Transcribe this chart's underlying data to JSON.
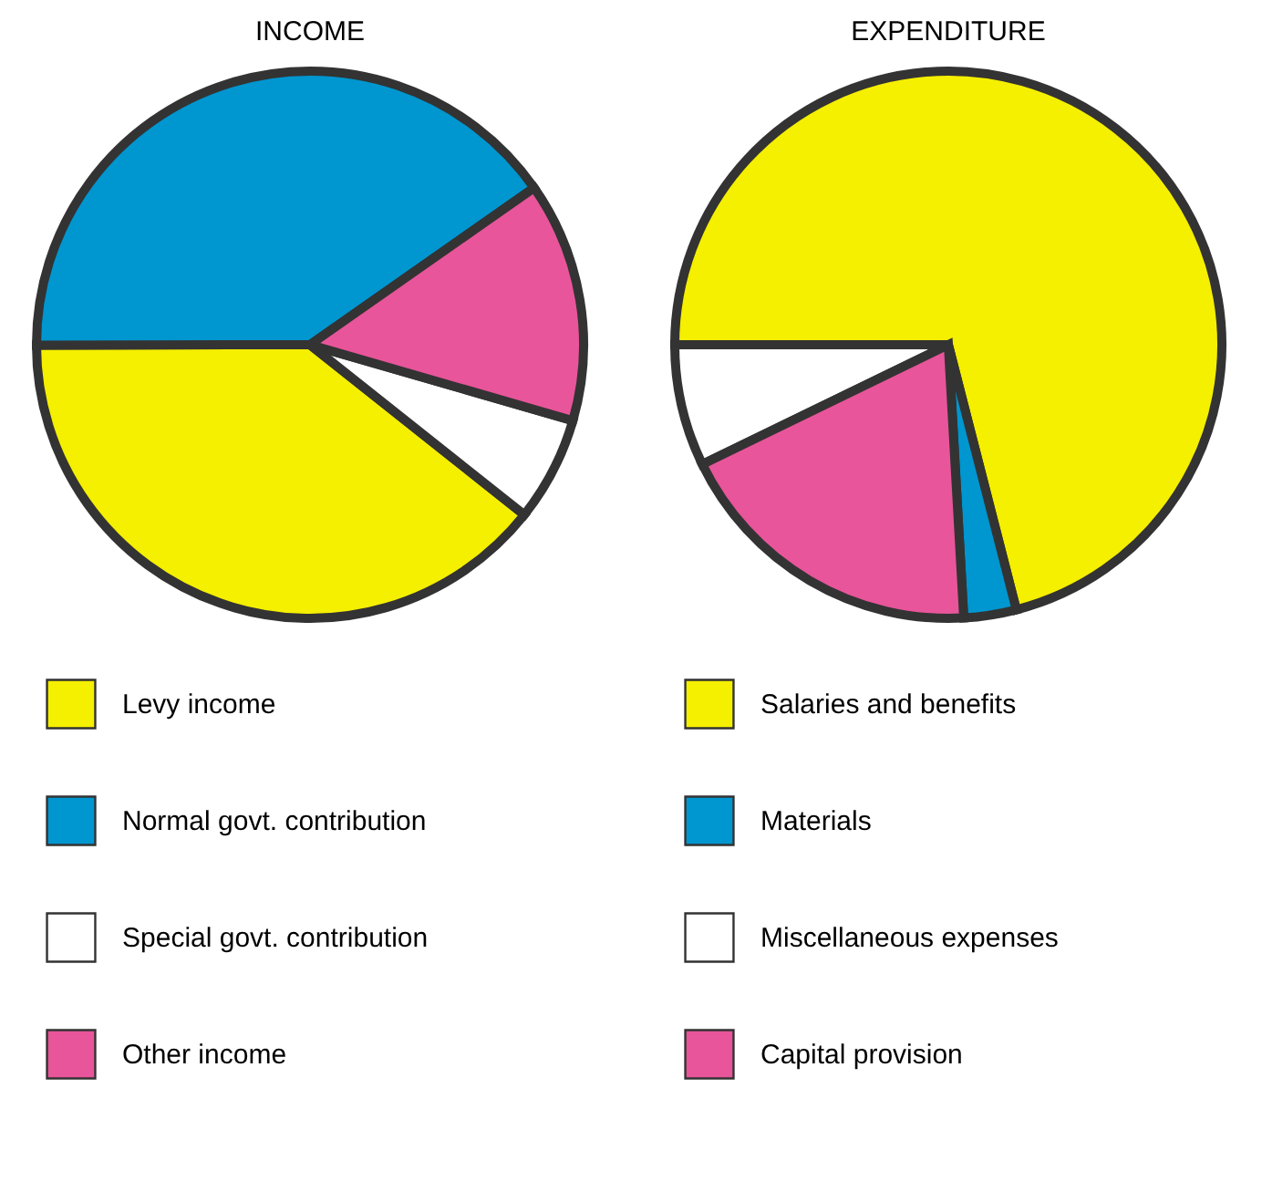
{
  "chart_data": [
    {
      "type": "pie",
      "title": "INCOME",
      "categories": [
        "Levy income",
        "Normal govt. contribution",
        "Special govt. contribution",
        "Other income"
      ],
      "values": [
        39.3,
        40.3,
        6.2,
        14.2
      ],
      "colors": [
        "#f5ef00",
        "#0096d0",
        "#ffffff",
        "#e8559a"
      ],
      "legend": "bottom"
    },
    {
      "type": "pie",
      "title": "EXPENDITURE",
      "categories": [
        "Salaries and benefits",
        "Materials",
        "Miscellaneous expenses",
        "Capital provision"
      ],
      "values": [
        71.0,
        3.1,
        7.2,
        18.7
      ],
      "colors": [
        "#f5ef00",
        "#0096d0",
        "#ffffff",
        "#e8559a"
      ],
      "legend": "bottom"
    }
  ]
}
